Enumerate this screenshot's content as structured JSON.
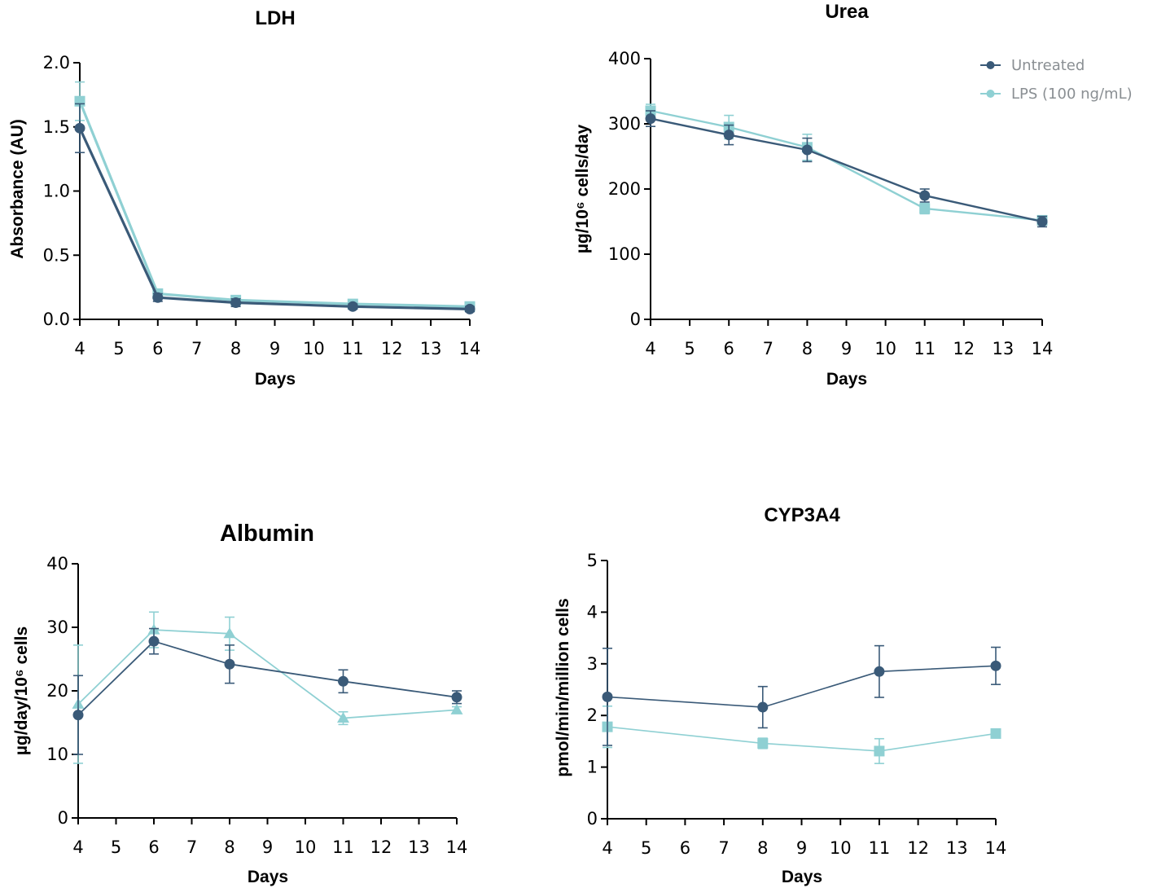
{
  "legend": {
    "items": [
      {
        "name": "Untreated",
        "color": "#3a5a78",
        "marker": "circle"
      },
      {
        "name": "LPS (100 ng/mL)",
        "color": "#8fd0d3",
        "marker": "circle"
      }
    ]
  },
  "colors": {
    "untreated": "#3a5a78",
    "lps": "#8fd0d3",
    "axis": "#000000"
  },
  "chart_data": [
    {
      "type": "line",
      "title": "LDH",
      "xlabel": "Days",
      "ylabel": "Absorbance (AU)",
      "xlim": [
        4,
        14
      ],
      "ylim": [
        0,
        2
      ],
      "xticks": [
        4,
        5,
        6,
        7,
        8,
        9,
        10,
        11,
        12,
        13,
        14
      ],
      "xtick_labels": [
        "4",
        "5",
        "6",
        "7",
        "8",
        "9",
        "10",
        "11",
        "12",
        "13",
        "14"
      ],
      "yticks": [
        0,
        0.5,
        1,
        1.5,
        2
      ],
      "ytick_labels": [
        "0.0",
        "0.5",
        "1.0",
        "1.5",
        "2.0"
      ],
      "series": [
        {
          "name": "Untreated",
          "x": [
            4,
            6,
            8,
            11,
            14
          ],
          "y": [
            1.49,
            0.17,
            0.13,
            0.1,
            0.08
          ],
          "err": [
            0.19,
            0.03,
            0.03,
            0.02,
            0.02
          ],
          "marker": "circle"
        },
        {
          "name": "LPS (100 ng/mL)",
          "x": [
            4,
            6,
            8,
            11,
            14
          ],
          "y": [
            1.7,
            0.2,
            0.15,
            0.12,
            0.1
          ],
          "err": [
            0.15,
            0.03,
            0.03,
            0.02,
            0.02
          ],
          "marker": "square"
        }
      ]
    },
    {
      "type": "line",
      "title": "Urea",
      "xlabel": "Days",
      "ylabel": "µg/10⁶ cells/day",
      "xlim": [
        4,
        14
      ],
      "ylim": [
        0,
        400
      ],
      "xticks": [
        4,
        5,
        6,
        7,
        8,
        9,
        10,
        11,
        12,
        13,
        14
      ],
      "xtick_labels": [
        "4",
        "5",
        "6",
        "7",
        "8",
        "9",
        "10",
        "11",
        "12",
        "13",
        "14"
      ],
      "yticks": [
        0,
        100,
        200,
        300,
        400
      ],
      "ytick_labels": [
        "0",
        "100",
        "200",
        "300",
        "400"
      ],
      "series": [
        {
          "name": "Untreated",
          "x": [
            4,
            6,
            8,
            11,
            14
          ],
          "y": [
            308,
            283,
            260,
            190,
            150
          ],
          "err": [
            12,
            15,
            18,
            10,
            8
          ],
          "marker": "circle"
        },
        {
          "name": "LPS (100 ng/mL)",
          "x": [
            4,
            6,
            8,
            11,
            14
          ],
          "y": [
            320,
            295,
            264,
            170,
            152
          ],
          "err": [
            10,
            18,
            20,
            8,
            6
          ],
          "marker": "square"
        }
      ]
    },
    {
      "type": "line",
      "title": "Albumin",
      "xlabel": "Days",
      "ylabel": "µg/day/10⁶ cells",
      "xlim": [
        4,
        14
      ],
      "ylim": [
        0,
        40
      ],
      "xticks": [
        4,
        5,
        6,
        7,
        8,
        9,
        10,
        11,
        12,
        13,
        14
      ],
      "xtick_labels": [
        "4",
        "5",
        "6",
        "7",
        "8",
        "9",
        "10",
        "11",
        "12",
        "13",
        "14"
      ],
      "yticks": [
        0,
        10,
        20,
        30,
        40
      ],
      "ytick_labels": [
        "0",
        "10",
        "20",
        "30",
        "40"
      ],
      "series": [
        {
          "name": "Untreated",
          "x": [
            4,
            6,
            8,
            11,
            14
          ],
          "y": [
            16.2,
            27.8,
            24.2,
            21.5,
            19.0
          ],
          "err": [
            6.2,
            2.0,
            3.0,
            1.8,
            1.0
          ],
          "marker": "circle"
        },
        {
          "name": "LPS (100 ng/mL)",
          "x": [
            4,
            6,
            8,
            11,
            14
          ],
          "y": [
            17.9,
            29.6,
            29.0,
            15.7,
            17.0
          ],
          "err": [
            9.3,
            2.8,
            2.6,
            1.0,
            0.5
          ],
          "marker": "triangle"
        }
      ]
    },
    {
      "type": "line",
      "title": "CYP3A4",
      "xlabel": "Days",
      "ylabel": "pmol/min/million cells",
      "xlim": [
        4,
        14
      ],
      "ylim": [
        0,
        5
      ],
      "xticks": [
        4,
        5,
        6,
        7,
        8,
        9,
        10,
        11,
        12,
        13,
        14
      ],
      "xtick_labels": [
        "4",
        "5",
        "6",
        "7",
        "8",
        "9",
        "10",
        "11",
        "12",
        "13",
        "14"
      ],
      "yticks": [
        0,
        1,
        2,
        3,
        4,
        5
      ],
      "ytick_labels": [
        "0",
        "1",
        "2",
        "3",
        "4",
        "5"
      ],
      "series": [
        {
          "name": "Untreated",
          "x": [
            4,
            8,
            11,
            14
          ],
          "y": [
            2.36,
            2.16,
            2.85,
            2.96
          ],
          "err": [
            0.94,
            0.4,
            0.5,
            0.36
          ],
          "marker": "circle"
        },
        {
          "name": "LPS (100 ng/mL)",
          "x": [
            4,
            8,
            11,
            14
          ],
          "y": [
            1.78,
            1.46,
            1.31,
            1.65
          ],
          "err": [
            0.4,
            0.1,
            0.24,
            0.05
          ],
          "marker": "square"
        }
      ]
    }
  ]
}
